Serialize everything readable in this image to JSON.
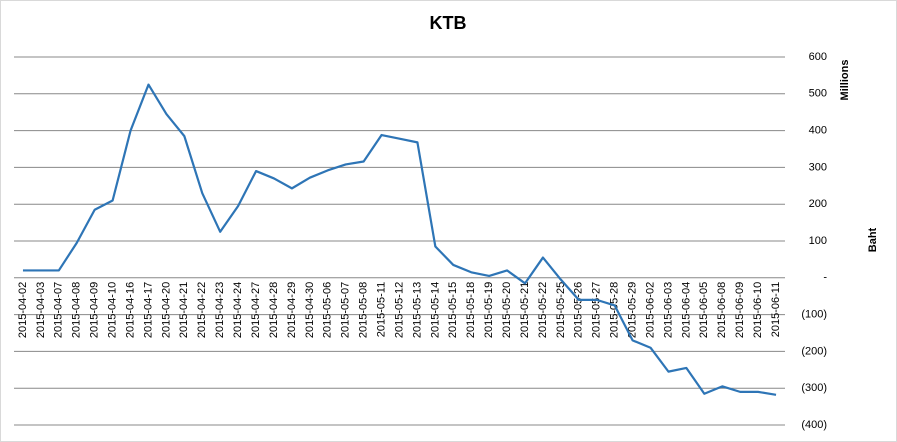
{
  "chart_data": {
    "type": "line",
    "title": "KTB",
    "y_unit_label": "Millions",
    "y_axis_label": "Baht",
    "categories": [
      "2015-04-02",
      "2015-04-03",
      "2015-04-07",
      "2015-04-08",
      "2015-04-09",
      "2015-04-10",
      "2015-04-16",
      "2015-04-17",
      "2015-04-20",
      "2015-04-21",
      "2015-04-22",
      "2015-04-23",
      "2015-04-24",
      "2015-04-27",
      "2015-04-28",
      "2015-04-29",
      "2015-04-30",
      "2015-05-06",
      "2015-05-07",
      "2015-05-08",
      "2015-05-11",
      "2015-05-12",
      "2015-05-13",
      "2015-05-14",
      "2015-05-15",
      "2015-05-18",
      "2015-05-19",
      "2015-05-20",
      "2015-05-21",
      "2015-05-22",
      "2015-05-25",
      "2015-05-26",
      "2015-05-27",
      "2015-05-28",
      "2015-05-29",
      "2015-06-02",
      "2015-06-03",
      "2015-06-04",
      "2015-06-05",
      "2015-06-08",
      "2015-06-09",
      "2015-06-10",
      "2015-06-11"
    ],
    "series": [
      {
        "color": "#2e75b6",
        "values": [
          20,
          20,
          20,
          95,
          185,
          210,
          400,
          525,
          445,
          385,
          230,
          125,
          195,
          290,
          270,
          243,
          272,
          292,
          308,
          316,
          388,
          378,
          368,
          85,
          35,
          15,
          5,
          20,
          -15,
          55,
          -5,
          -60,
          -60,
          -75,
          -170,
          -190,
          -255,
          -245,
          -315,
          -295,
          -310,
          -310,
          -318
        ]
      }
    ],
    "ylim": [
      -400,
      600
    ],
    "yticks": [
      600,
      500,
      400,
      300,
      200,
      100,
      {
        "value": 0,
        "label": "-"
      },
      {
        "value": -100,
        "label": "(100)"
      },
      {
        "value": -200,
        "label": "(200)"
      },
      {
        "value": -300,
        "label": "(300)"
      },
      {
        "value": -400,
        "label": "(400)"
      }
    ],
    "grid": true,
    "y_axis_side": "right"
  }
}
